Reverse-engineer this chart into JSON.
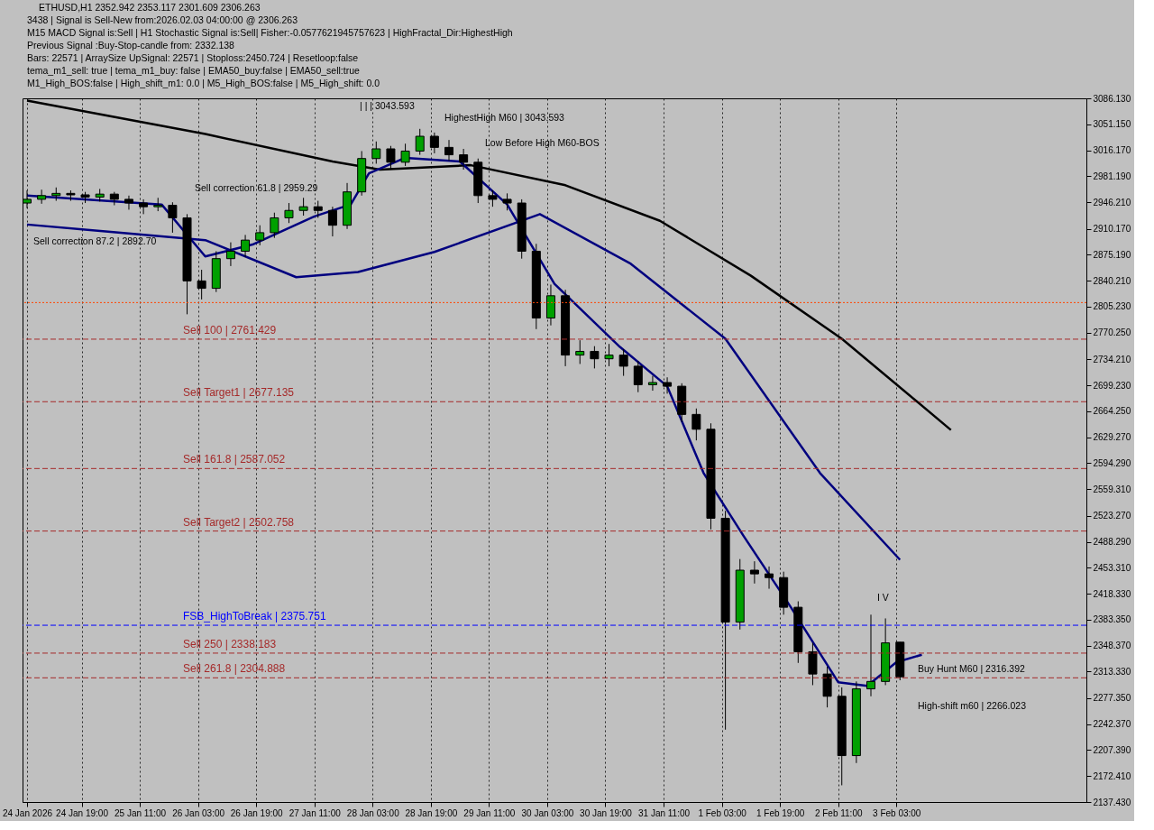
{
  "chart_data": {
    "type": "candlestick",
    "title": "ETHUSD,H1  2352.942 2353.117 2301.609 2306.263",
    "x": [
      "2026-01-24T04:00",
      "2026-01-24T08:00",
      "2026-01-24T12:00",
      "2026-01-24T16:00",
      "2026-01-24T20:00",
      "2026-01-25T00:00",
      "2026-01-25T04:00",
      "2026-01-25T08:00",
      "2026-01-25T12:00",
      "2026-01-25T16:00",
      "2026-01-25T20:00",
      "2026-01-26T00:00",
      "2026-01-26T04:00",
      "2026-01-26T08:00",
      "2026-01-26T12:00",
      "2026-01-26T16:00",
      "2026-01-26T20:00",
      "2026-01-27T00:00",
      "2026-01-27T04:00",
      "2026-01-27T08:00",
      "2026-01-27T12:00",
      "2026-01-27T16:00",
      "2026-01-27T20:00",
      "2026-01-28T00:00",
      "2026-01-28T04:00",
      "2026-01-28T08:00",
      "2026-01-28T12:00",
      "2026-01-28T16:00",
      "2026-01-28T20:00",
      "2026-01-29T00:00",
      "2026-01-29T04:00",
      "2026-01-29T08:00",
      "2026-01-29T12:00",
      "2026-01-29T16:00",
      "2026-01-29T20:00",
      "2026-01-30T00:00",
      "2026-01-30T04:00",
      "2026-01-30T08:00",
      "2026-01-30T12:00",
      "2026-01-30T16:00",
      "2026-01-30T20:00",
      "2026-01-31T00:00",
      "2026-01-31T04:00",
      "2026-01-31T08:00",
      "2026-01-31T12:00",
      "2026-01-31T16:00",
      "2026-01-31T20:00",
      "2026-02-01T00:00",
      "2026-02-01T04:00",
      "2026-02-01T08:00",
      "2026-02-01T12:00",
      "2026-02-01T16:00",
      "2026-02-01T20:00",
      "2026-02-02T00:00",
      "2026-02-02T04:00",
      "2026-02-02T08:00",
      "2026-02-02T12:00",
      "2026-02-02T16:00",
      "2026-02-02T20:00",
      "2026-02-03T00:00",
      "2026-02-03T04:00"
    ],
    "ohlc": [
      [
        2945,
        2962,
        2938,
        2950
      ],
      [
        2950,
        2963,
        2944,
        2955
      ],
      [
        2955,
        2966,
        2948,
        2958
      ],
      [
        2958,
        2962,
        2948,
        2956
      ],
      [
        2956,
        2960,
        2945,
        2953
      ],
      [
        2953,
        2964,
        2947,
        2957
      ],
      [
        2957,
        2960,
        2942,
        2950
      ],
      [
        2950,
        2955,
        2936,
        2945
      ],
      [
        2945,
        2950,
        2930,
        2940
      ],
      [
        2940,
        2952,
        2934,
        2942
      ],
      [
        2942,
        2946,
        2905,
        2925
      ],
      [
        2925,
        2930,
        2795,
        2840
      ],
      [
        2840,
        2855,
        2815,
        2830
      ],
      [
        2830,
        2880,
        2825,
        2870
      ],
      [
        2870,
        2892,
        2860,
        2880
      ],
      [
        2880,
        2902,
        2872,
        2895
      ],
      [
        2895,
        2915,
        2888,
        2905
      ],
      [
        2905,
        2932,
        2898,
        2925
      ],
      [
        2925,
        2945,
        2918,
        2935
      ],
      [
        2935,
        2952,
        2928,
        2940
      ],
      [
        2940,
        2948,
        2925,
        2935
      ],
      [
        2935,
        2940,
        2900,
        2915
      ],
      [
        2915,
        2972,
        2910,
        2960
      ],
      [
        2960,
        3015,
        2955,
        3005
      ],
      [
        3005,
        3028,
        2998,
        3018
      ],
      [
        3018,
        3022,
        2990,
        3000
      ],
      [
        3000,
        3025,
        2995,
        3015
      ],
      [
        3015,
        3045,
        3010,
        3035
      ],
      [
        3035,
        3040,
        3012,
        3020
      ],
      [
        3020,
        3030,
        3002,
        3010
      ],
      [
        3010,
        3018,
        2990,
        3000
      ],
      [
        3000,
        3005,
        2945,
        2955
      ],
      [
        2955,
        2962,
        2940,
        2950
      ],
      [
        2950,
        2958,
        2935,
        2945
      ],
      [
        2945,
        2950,
        2870,
        2880
      ],
      [
        2880,
        2890,
        2775,
        2790
      ],
      [
        2790,
        2835,
        2780,
        2820
      ],
      [
        2820,
        2828,
        2725,
        2740
      ],
      [
        2740,
        2760,
        2728,
        2745
      ],
      [
        2745,
        2752,
        2722,
        2735
      ],
      [
        2735,
        2755,
        2725,
        2740
      ],
      [
        2740,
        2748,
        2712,
        2725
      ],
      [
        2725,
        2732,
        2690,
        2700
      ],
      [
        2700,
        2712,
        2692,
        2703
      ],
      [
        2703,
        2710,
        2688,
        2698
      ],
      [
        2698,
        2702,
        2650,
        2660
      ],
      [
        2660,
        2668,
        2625,
        2640
      ],
      [
        2640,
        2648,
        2505,
        2520
      ],
      [
        2520,
        2530,
        2235,
        2380
      ],
      [
        2380,
        2465,
        2370,
        2450
      ],
      [
        2450,
        2462,
        2432,
        2445
      ],
      [
        2445,
        2455,
        2425,
        2440
      ],
      [
        2440,
        2448,
        2390,
        2400
      ],
      [
        2400,
        2408,
        2325,
        2340
      ],
      [
        2340,
        2352,
        2295,
        2310
      ],
      [
        2310,
        2320,
        2265,
        2280
      ],
      [
        2280,
        2292,
        2160,
        2200
      ],
      [
        2200,
        2300,
        2190,
        2290
      ],
      [
        2290,
        2390,
        2280,
        2300
      ],
      [
        2300,
        2385,
        2295,
        2352
      ],
      [
        2352.942,
        2353.117,
        2301.609,
        2306.263
      ]
    ],
    "colors": [
      "#00a000",
      "#00a000",
      "#00a000",
      "#000000",
      "#000000",
      "#00a000",
      "#000000",
      "#000000",
      "#000000",
      "#00a000",
      "#000000",
      "#000000",
      "#000000",
      "#00a000",
      "#00a000",
      "#00a000",
      "#00a000",
      "#00a000",
      "#00a000",
      "#00a000",
      "#000000",
      "#000000",
      "#00a000",
      "#00a000",
      "#00a000",
      "#000000",
      "#00a000",
      "#00a000",
      "#000000",
      "#000000",
      "#000000",
      "#000000",
      "#000000",
      "#000000",
      "#000000",
      "#000000",
      "#00a000",
      "#000000",
      "#00a000",
      "#000000",
      "#00a000",
      "#000000",
      "#000000",
      "#00a000",
      "#000000",
      "#000000",
      "#000000",
      "#000000",
      "#000000",
      "#00a000",
      "#000000",
      "#000000",
      "#000000",
      "#000000",
      "#000000",
      "#000000",
      "#000000",
      "#00a000",
      "#00a000",
      "#00a000",
      "#000000"
    ],
    "series": [
      {
        "type": "line",
        "color": "#000000",
        "x": [
          "2026-01-24T04:00",
          "2026-01-26T05:00",
          "2026-01-27T16:00",
          "2026-01-28T05:00",
          "2026-01-29T06:00",
          "2026-01-30T08:00",
          "2026-01-31T10:00",
          "2026-02-01T11:00",
          "2026-02-02T12:00",
          "2026-02-03T18:00"
        ],
        "values": [
          3083,
          3038,
          3001,
          2990,
          2996,
          2969,
          2921,
          2847,
          2762,
          2639
        ]
      },
      {
        "type": "line",
        "color": "#00007f",
        "x": [
          "2026-01-24T04:00",
          "2026-01-26T05:00",
          "2026-01-27T06:00",
          "2026-01-27T23:00",
          "2026-01-28T20:00",
          "2026-01-30T01:00",
          "2026-01-31T02:00",
          "2026-02-01T04:00",
          "2026-02-02T06:00",
          "2026-02-03T04:00"
        ],
        "values": [
          2916,
          2895,
          2845,
          2852,
          2879,
          2930,
          2863,
          2762,
          2581,
          2464
        ]
      },
      {
        "type": "line",
        "color": "#00007f",
        "x": [
          "2026-01-24T04:00",
          "2026-01-25T17:00",
          "2026-01-26T05:00",
          "2026-01-26T18:00",
          "2026-01-27T11:00",
          "2026-01-27T21:00",
          "2026-01-28T02:00",
          "2026-01-28T12:00",
          "2026-01-29T03:00",
          "2026-01-29T16:00",
          "2026-01-30T05:00",
          "2026-01-30T23:00",
          "2026-01-31T12:00",
          "2026-01-31T22:00",
          "2026-02-01T09:00",
          "2026-02-01T22:00",
          "2026-02-02T11:00",
          "2026-02-02T19:00",
          "2026-02-03T03:00",
          "2026-02-03T10:00"
        ],
        "values": [
          2955,
          2943,
          2873,
          2889,
          2927,
          2943,
          2985,
          3006,
          3001,
          2943,
          2836,
          2751,
          2698,
          2581,
          2496,
          2400,
          2299,
          2294,
          2326,
          2336
        ]
      }
    ],
    "xlim": [
      "2026-01-24T04:00",
      "2026-02-05T06:00"
    ],
    "xticks": [
      {
        "value": "2026-01-24T04:00",
        "label": "24 Jan 2026"
      },
      {
        "value": "2026-01-24T19:00",
        "label": "24 Jan 19:00"
      },
      {
        "value": "2026-01-25T11:00",
        "label": "25 Jan 11:00"
      },
      {
        "value": "2026-01-26T03:00",
        "label": "26 Jan 03:00"
      },
      {
        "value": "2026-01-26T19:00",
        "label": "26 Jan 19:00"
      },
      {
        "value": "2026-01-27T11:00",
        "label": "27 Jan 11:00"
      },
      {
        "value": "2026-01-28T03:00",
        "label": "28 Jan 03:00"
      },
      {
        "value": "2026-01-28T19:00",
        "label": "28 Jan 19:00"
      },
      {
        "value": "2026-01-29T11:00",
        "label": "29 Jan 11:00"
      },
      {
        "value": "2026-01-30T03:00",
        "label": "30 Jan 03:00"
      },
      {
        "value": "2026-01-30T19:00",
        "label": "30 Jan 19:00"
      },
      {
        "value": "2026-01-31T11:00",
        "label": "31 Jan 11:00"
      },
      {
        "value": "2026-02-01T03:00",
        "label": "1 Feb 03:00"
      },
      {
        "value": "2026-02-01T19:00",
        "label": "1 Feb 19:00"
      },
      {
        "value": "2026-02-02T11:00",
        "label": "2 Feb 11:00"
      },
      {
        "value": "2026-02-03T03:00",
        "label": "3 Feb 03:00"
      }
    ],
    "ylim": [
      2137.43,
      3086.13
    ],
    "yticks": [
      {
        "value": 2137.43,
        "label": "2137.430"
      },
      {
        "value": 2172.41,
        "label": "2172.410"
      },
      {
        "value": 2207.39,
        "label": "2207.390"
      },
      {
        "value": 2242.37,
        "label": "2242.370"
      },
      {
        "value": 2277.35,
        "label": "2277.350"
      },
      {
        "value": 2313.33,
        "label": "2313.330"
      },
      {
        "value": 2348.37,
        "label": "2348.370"
      },
      {
        "value": 2383.35,
        "label": "2383.350"
      },
      {
        "value": 2418.33,
        "label": "2418.330"
      },
      {
        "value": 2453.31,
        "label": "2453.310"
      },
      {
        "value": 2488.29,
        "label": "2488.290"
      },
      {
        "value": 2523.27,
        "label": "2523.270"
      },
      {
        "value": 2559.31,
        "label": "2559.310"
      },
      {
        "value": 2594.29,
        "label": "2594.290"
      },
      {
        "value": 2629.27,
        "label": "2629.270"
      },
      {
        "value": 2664.25,
        "label": "2664.250"
      },
      {
        "value": 2699.23,
        "label": "2699.230"
      },
      {
        "value": 2734.21,
        "label": "2734.210"
      },
      {
        "value": 2770.25,
        "label": "2770.250"
      },
      {
        "value": 2805.23,
        "label": "2805.230"
      },
      {
        "value": 2840.21,
        "label": "2840.210"
      },
      {
        "value": 2875.19,
        "label": "2875.190"
      },
      {
        "value": 2910.17,
        "label": "2910.170"
      },
      {
        "value": 2946.21,
        "label": "2946.210"
      },
      {
        "value": 2981.19,
        "label": "2981.190"
      },
      {
        "value": 3016.17,
        "label": "3016.170"
      },
      {
        "value": 3051.15,
        "label": "3051.150"
      },
      {
        "value": 3086.13,
        "label": "3086.130"
      }
    ],
    "grid": "x",
    "ref_lines": [
      {
        "axis": "y",
        "value": 2810.778,
        "label": null,
        "color": "#ff4500",
        "line_style": "dotted"
      },
      {
        "axis": "y",
        "value": 2761.429,
        "label": "Sell 100 | 2761.429",
        "color": "#a52a2a",
        "line_style": "dashed"
      },
      {
        "axis": "y",
        "value": 2677.135,
        "label": "Sell Target1 | 2677.135",
        "color": "#a52a2a",
        "line_style": "dashed"
      },
      {
        "axis": "y",
        "value": 2587.052,
        "label": "Sell 161.8 | 2587.052",
        "color": "#a52a2a",
        "line_style": "dashed"
      },
      {
        "axis": "y",
        "value": 2502.758,
        "label": "Sell Target2 | 2502.758",
        "color": "#a52a2a",
        "line_style": "dashed"
      },
      {
        "axis": "y",
        "value": 2375.751,
        "label": "FSB_HighToBreak | 2375.751",
        "color": "#0000ff",
        "line_style": "dashed"
      },
      {
        "axis": "y",
        "value": 2338.183,
        "label": "Sell 250 | 2338.183",
        "color": "#a52a2a",
        "line_style": "dashed"
      },
      {
        "axis": "y",
        "value": 2304.888,
        "label": "Sell 261.8 | 2304.888",
        "color": "#a52a2a",
        "line_style": "dashed"
      }
    ],
    "annotations": [
      "3438 | Signal is Sell-New from:2026.02.03 04:00:00 @ 2306.263",
      "M15 MACD Signal is:Sell | H1 Stochastic Signal is:Sell| Fisher:-0.0577621945757623 | HighFractal_Dir:HighestHigh",
      "Previous Signal :Buy-Stop-candle from: 2332.138",
      "Bars: 22571 | ArraySize UpSignal: 22571 | Stoploss:2450.724 | Resetloop:false",
      "tema_m1_sell: true | tema_m1_buy: false | EMA50_buy:false | EMA50_sell:true",
      "M1_High_BOS:false | High_shift_m1: 0.0 | M5_High_BOS:false | M5_High_shift: 0.0",
      "| | | 3043.593",
      "HighestHigh M60 | 3043.593",
      "Low Before High   M60-BOS",
      "Sell correction 61.8 | 2959.29",
      "Buy Hunt M60 | 2316.392",
      "I V",
      "Sell correction 87.2 | 2892.70",
      "High-shift m60 | 2266.023"
    ]
  }
}
